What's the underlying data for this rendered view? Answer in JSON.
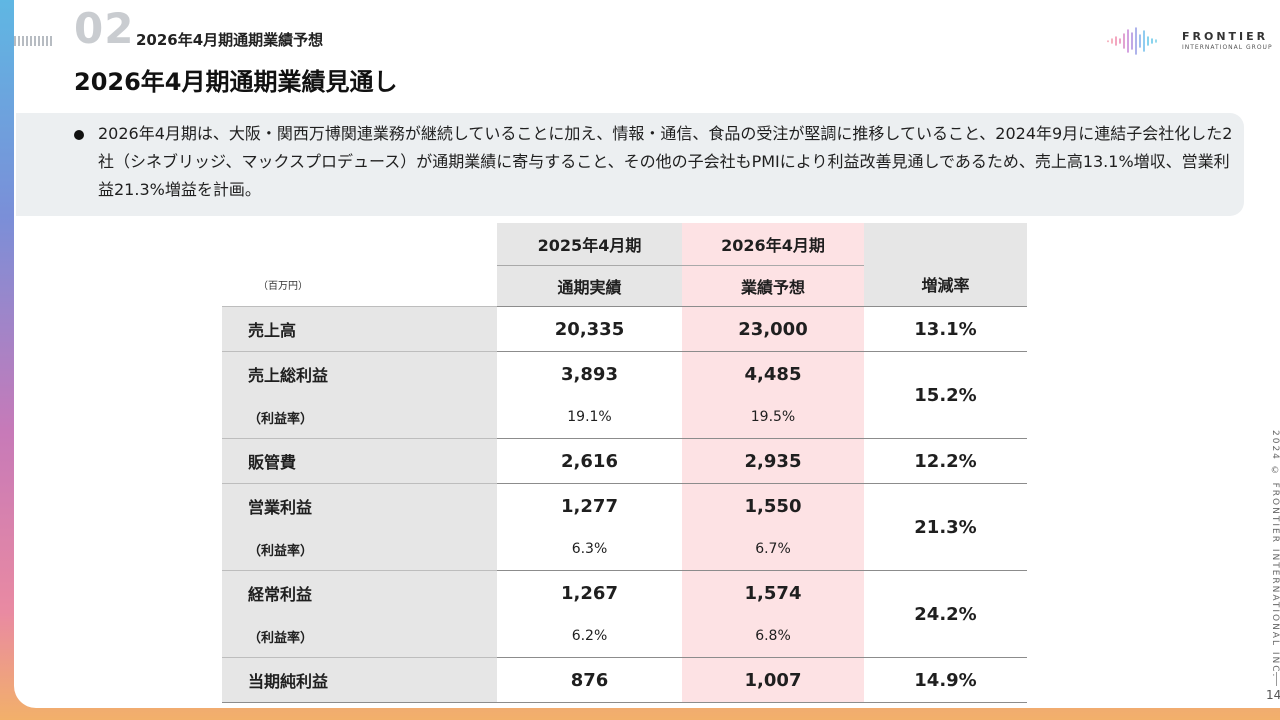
{
  "header": {
    "section_number": "02",
    "section_title": "2026年4月期通期業績予想",
    "page_title": "2026年4月期通期業績見通し",
    "logo_main": "FRONTIER",
    "logo_sub": "INTERNATIONAL GROUP"
  },
  "summary": "2026年4月期は、大阪・関西万博関連業務が継続していることに加え、情報・通信、食品の受注が堅調に推移していること、2024年9月に連結子会社化した2社（シネブリッジ、マックスプロデュース）が通期業績に寄与すること、その他の子会社もPMIにより利益改善見通しであるため、売上高13.1%増収、営業利益21.3%増益を計画。",
  "table": {
    "unit": "（百万円）",
    "year1": "2025年4月期",
    "year1_sub": "通期実績",
    "year2": "2026年4月期",
    "year2_sub": "業績予想",
    "rate_header": "増減率",
    "rows": {
      "sales": {
        "label": "売上高",
        "y1": "20,335",
        "y2": "23,000",
        "rate": "13.1%"
      },
      "gross": {
        "label": "売上総利益",
        "y1": "3,893",
        "y2": "4,485",
        "rate": "15.2%",
        "margin_label": "（利益率）",
        "m1": "19.1%",
        "m2": "19.5%"
      },
      "sga": {
        "label": "販管費",
        "y1": "2,616",
        "y2": "2,935",
        "rate": "12.2%"
      },
      "op": {
        "label": "営業利益",
        "y1": "1,277",
        "y2": "1,550",
        "rate": "21.3%",
        "margin_label": "（利益率）",
        "m1": "6.3%",
        "m2": "6.7%"
      },
      "ord": {
        "label": "経常利益",
        "y1": "1,267",
        "y2": "1,574",
        "rate": "24.2%",
        "margin_label": "（利益率）",
        "m1": "6.2%",
        "m2": "6.8%"
      },
      "net": {
        "label": "当期純利益",
        "y1": "876",
        "y2": "1,007",
        "rate": "14.9%"
      }
    }
  },
  "footer": {
    "copyright": "2024 © FRONTIER INTERNATIONAL INC.",
    "page_number": "14"
  }
}
